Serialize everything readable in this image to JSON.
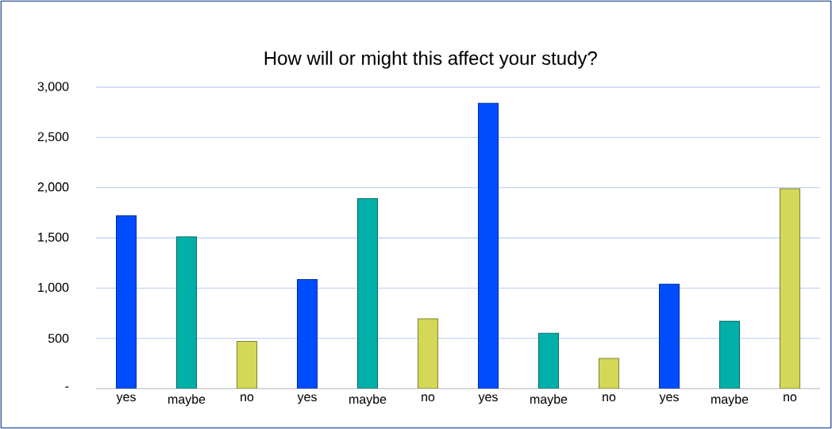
{
  "chart_data": {
    "type": "bar",
    "title": "How will or might this affect your study?",
    "categories": [
      "yes",
      "maybe",
      "no",
      "yes",
      "maybe",
      "no",
      "yes",
      "maybe",
      "no",
      "yes",
      "maybe",
      "no"
    ],
    "values": [
      1720,
      1510,
      470,
      1085,
      1890,
      695,
      2840,
      550,
      300,
      1040,
      670,
      1990
    ],
    "colors": [
      "#004dff",
      "#00b0a8",
      "#d4d858",
      "#004dff",
      "#00b0a8",
      "#d4d858",
      "#004dff",
      "#00b0a8",
      "#d4d858",
      "#004dff",
      "#00b0a8",
      "#d4d858"
    ],
    "ylim": [
      0,
      3000
    ],
    "yticks": [
      {
        "value": 0,
        "label": "-"
      },
      500,
      {
        "value": 1000,
        "label": "1,000"
      },
      {
        "value": 1500,
        "label": "1,500"
      },
      {
        "value": 2000,
        "label": "2,000"
      },
      {
        "value": 2500,
        "label": "2,500"
      },
      {
        "value": 3000,
        "label": "3,000"
      }
    ],
    "grid": "y"
  }
}
